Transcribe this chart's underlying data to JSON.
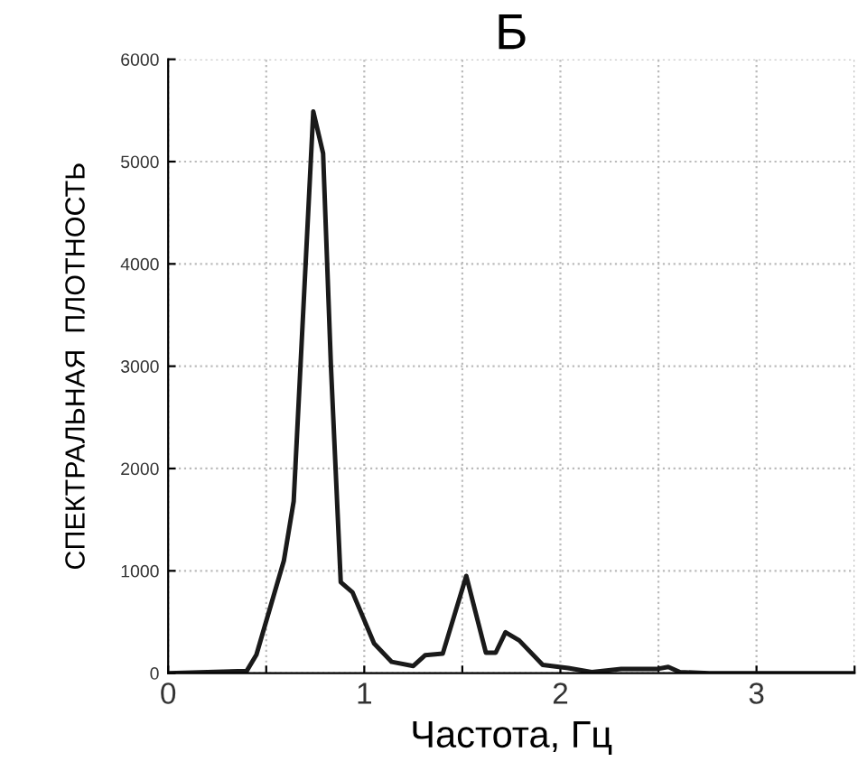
{
  "chart_data": {
    "type": "line",
    "title": "Б",
    "xlabel": "Частота, Гц",
    "ylabel": "СПЕКТРАЛЬНАЯ  ПЛОТНОСТЬ",
    "x": [
      0,
      0.2,
      0.4,
      0.45,
      0.59,
      0.64,
      0.74,
      0.79,
      0.83,
      0.88,
      0.94,
      1.05,
      1.14,
      1.25,
      1.31,
      1.4,
      1.52,
      1.62,
      1.67,
      1.72,
      1.79,
      1.91,
      2.04,
      2.16,
      2.31,
      2.49,
      2.55,
      2.61,
      2.76,
      3.5
    ],
    "series": [
      {
        "color": "#1a1a1a",
        "values": [
          0,
          10,
          20,
          180,
          1100,
          1680,
          5490,
          5080,
          3000,
          890,
          790,
          290,
          110,
          70,
          175,
          190,
          950,
          200,
          200,
          400,
          320,
          80,
          50,
          10,
          40,
          40,
          60,
          10,
          0,
          0
        ]
      }
    ],
    "xlim": [
      0,
      3.5
    ],
    "xticks": [
      0,
      {
        "value": 0.5,
        "label": null
      },
      1,
      {
        "value": 1.5,
        "label": null
      },
      2,
      {
        "value": 2.5,
        "label": null
      },
      3,
      {
        "value": 3.5,
        "label": null
      }
    ],
    "ylim": [
      0,
      6000
    ],
    "yticks": [
      0,
      1000,
      2000,
      3000,
      4000,
      5000,
      6000
    ],
    "grid": true,
    "marker": "none",
    "line_style": "solid",
    "legend": false
  }
}
